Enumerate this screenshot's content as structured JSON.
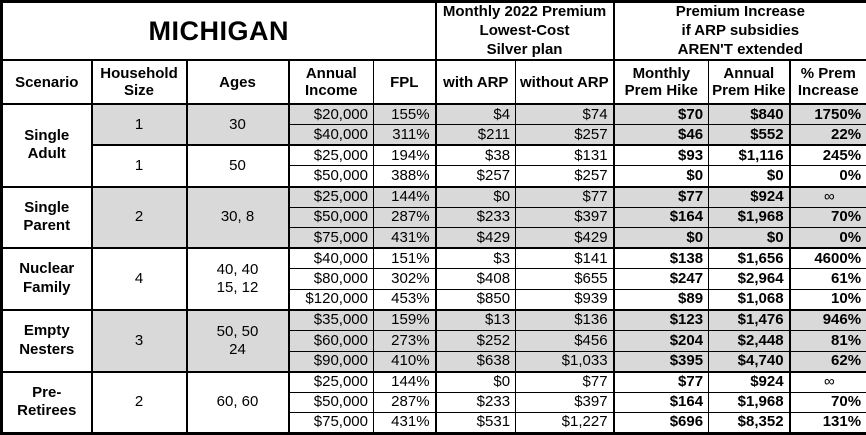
{
  "title": "MICHIGAN",
  "colors": {
    "shaded_row_bg": "#d9d9d9",
    "border": "#000000",
    "text": "#000000",
    "page_bg": "#ffffff"
  },
  "header": {
    "premium_group": "Monthly 2022 Premium\nLowest-Cost\nSilver plan",
    "increase_group": "Premium Increase\nif ARP subsidies\nAREN'T extended",
    "columns": [
      "Scenario",
      "Household\nSize",
      "Ages",
      "Annual\nIncome",
      "FPL",
      "with ARP",
      "without ARP",
      "Monthly\nPrem Hike",
      "Annual\nPrem Hike",
      "% Prem\nIncrease"
    ]
  },
  "groups": [
    {
      "scenario": "Single\nAdult",
      "subgroups": [
        {
          "household_size": "1",
          "ages": "30",
          "shaded": true,
          "rows": [
            {
              "income": "$20,000",
              "fpl": "155%",
              "with_arp": "$4",
              "without_arp": "$74",
              "monthly_hike": "$70",
              "annual_hike": "$840",
              "pct_increase": "1750%"
            },
            {
              "income": "$40,000",
              "fpl": "311%",
              "with_arp": "$211",
              "without_arp": "$257",
              "monthly_hike": "$46",
              "annual_hike": "$552",
              "pct_increase": "22%"
            }
          ]
        },
        {
          "household_size": "1",
          "ages": "50",
          "shaded": false,
          "rows": [
            {
              "income": "$25,000",
              "fpl": "194%",
              "with_arp": "$38",
              "without_arp": "$131",
              "monthly_hike": "$93",
              "annual_hike": "$1,116",
              "pct_increase": "245%"
            },
            {
              "income": "$50,000",
              "fpl": "388%",
              "with_arp": "$257",
              "without_arp": "$257",
              "monthly_hike": "$0",
              "annual_hike": "$0",
              "pct_increase": "0%"
            }
          ]
        }
      ]
    },
    {
      "scenario": "Single\nParent",
      "subgroups": [
        {
          "household_size": "2",
          "ages": "30, 8",
          "shaded": true,
          "rows": [
            {
              "income": "$25,000",
              "fpl": "144%",
              "with_arp": "$0",
              "without_arp": "$77",
              "monthly_hike": "$77",
              "annual_hike": "$924",
              "pct_increase": "∞"
            },
            {
              "income": "$50,000",
              "fpl": "287%",
              "with_arp": "$233",
              "without_arp": "$397",
              "monthly_hike": "$164",
              "annual_hike": "$1,968",
              "pct_increase": "70%"
            },
            {
              "income": "$75,000",
              "fpl": "431%",
              "with_arp": "$429",
              "without_arp": "$429",
              "monthly_hike": "$0",
              "annual_hike": "$0",
              "pct_increase": "0%"
            }
          ]
        }
      ]
    },
    {
      "scenario": "Nuclear\nFamily",
      "subgroups": [
        {
          "household_size": "4",
          "ages": "40, 40\n15, 12",
          "shaded": false,
          "rows": [
            {
              "income": "$40,000",
              "fpl": "151%",
              "with_arp": "$3",
              "without_arp": "$141",
              "monthly_hike": "$138",
              "annual_hike": "$1,656",
              "pct_increase": "4600%"
            },
            {
              "income": "$80,000",
              "fpl": "302%",
              "with_arp": "$408",
              "without_arp": "$655",
              "monthly_hike": "$247",
              "annual_hike": "$2,964",
              "pct_increase": "61%"
            },
            {
              "income": "$120,000",
              "fpl": "453%",
              "with_arp": "$850",
              "without_arp": "$939",
              "monthly_hike": "$89",
              "annual_hike": "$1,068",
              "pct_increase": "10%"
            }
          ]
        }
      ]
    },
    {
      "scenario": "Empty\nNesters",
      "subgroups": [
        {
          "household_size": "3",
          "ages": "50, 50\n24",
          "shaded": true,
          "rows": [
            {
              "income": "$35,000",
              "fpl": "159%",
              "with_arp": "$13",
              "without_arp": "$136",
              "monthly_hike": "$123",
              "annual_hike": "$1,476",
              "pct_increase": "946%"
            },
            {
              "income": "$60,000",
              "fpl": "273%",
              "with_arp": "$252",
              "without_arp": "$456",
              "monthly_hike": "$204",
              "annual_hike": "$2,448",
              "pct_increase": "81%"
            },
            {
              "income": "$90,000",
              "fpl": "410%",
              "with_arp": "$638",
              "without_arp": "$1,033",
              "monthly_hike": "$395",
              "annual_hike": "$4,740",
              "pct_increase": "62%"
            }
          ]
        }
      ]
    },
    {
      "scenario": "Pre-\nRetirees",
      "subgroups": [
        {
          "household_size": "2",
          "ages": "60, 60",
          "shaded": false,
          "rows": [
            {
              "income": "$25,000",
              "fpl": "144%",
              "with_arp": "$0",
              "without_arp": "$77",
              "monthly_hike": "$77",
              "annual_hike": "$924",
              "pct_increase": "∞"
            },
            {
              "income": "$50,000",
              "fpl": "287%",
              "with_arp": "$233",
              "without_arp": "$397",
              "monthly_hike": "$164",
              "annual_hike": "$1,968",
              "pct_increase": "70%"
            },
            {
              "income": "$75,000",
              "fpl": "431%",
              "with_arp": "$531",
              "without_arp": "$1,227",
              "monthly_hike": "$696",
              "annual_hike": "$8,352",
              "pct_increase": "131%"
            }
          ]
        }
      ]
    }
  ]
}
